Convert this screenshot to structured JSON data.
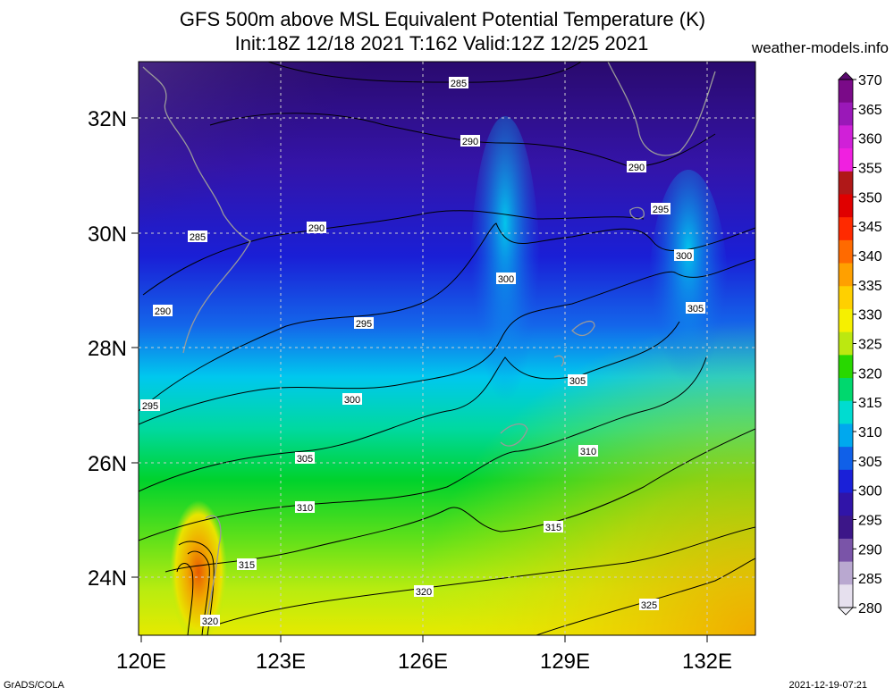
{
  "header": {
    "title_line1": "GFS 500m above MSL Equivalent Potential Temperature (K)",
    "title_line2": "Init:18Z 12/18 2021 T:162 Valid:12Z 12/25 2021",
    "site": "weather-models.info"
  },
  "footer": {
    "left": "GrADS/COLA",
    "right": "2021-12-19-07:21"
  },
  "map": {
    "lon_range": [
      120,
      133
    ],
    "lat_range": [
      23,
      33
    ],
    "lon_ticks": [
      "120E",
      "123E",
      "126E",
      "129E",
      "132E"
    ],
    "lat_ticks": [
      "32N",
      "30N",
      "28N",
      "26N",
      "24N"
    ]
  },
  "colorbar": {
    "levels": [
      "370",
      "365",
      "360",
      "355",
      "350",
      "345",
      "340",
      "335",
      "330",
      "325",
      "320",
      "315",
      "310",
      "305",
      "300",
      "295",
      "290",
      "285",
      "280"
    ]
  },
  "contour_labels": [
    {
      "value": "285"
    },
    {
      "value": "290"
    },
    {
      "value": "290"
    },
    {
      "value": "285"
    },
    {
      "value": "290"
    },
    {
      "value": "290"
    },
    {
      "value": "295"
    },
    {
      "value": "295"
    },
    {
      "value": "300"
    },
    {
      "value": "300"
    },
    {
      "value": "295"
    },
    {
      "value": "300"
    },
    {
      "value": "305"
    },
    {
      "value": "305"
    },
    {
      "value": "305"
    },
    {
      "value": "310"
    },
    {
      "value": "310"
    },
    {
      "value": "315"
    },
    {
      "value": "315"
    },
    {
      "value": "320"
    },
    {
      "value": "320"
    },
    {
      "value": "325"
    }
  ]
}
